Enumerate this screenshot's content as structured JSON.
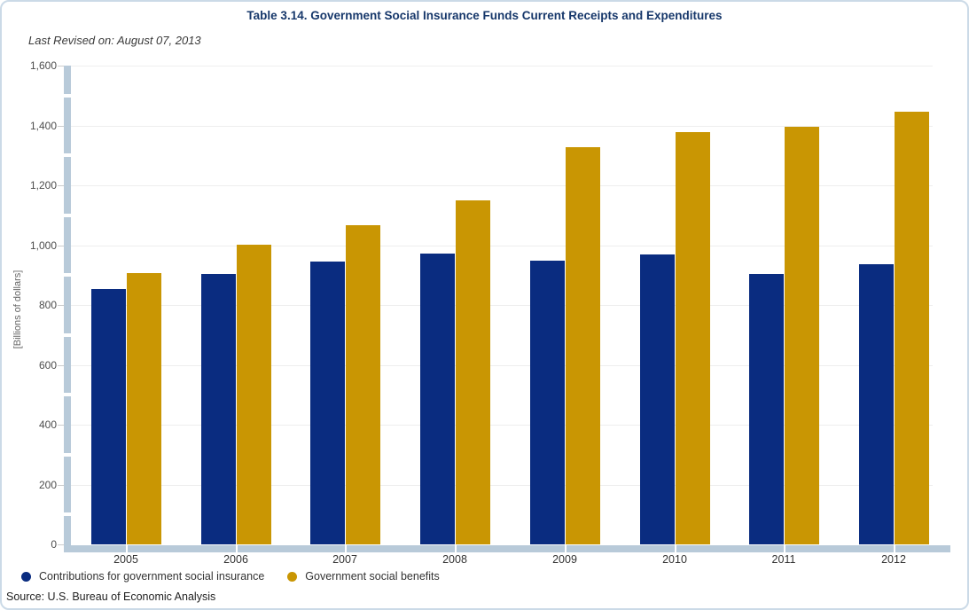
{
  "header": {
    "title": "Table 3.14. Government Social Insurance Funds Current Receipts and Expenditures",
    "last_revised": "Last Revised on: August 07, 2013"
  },
  "source_note": "Source: U.S. Bureau of Economic Analysis",
  "colors": {
    "contributions_blue": "#0a2c80",
    "benefits_gold": "#c99603",
    "axis_bar": "#b8cad9",
    "gridline": "#eeeeee",
    "title_text": "#17386b",
    "card_border": "#cbdae7"
  },
  "chart_data": {
    "type": "bar",
    "title": "Table 3.14. Government Social Insurance Funds Current Receipts and Expenditures",
    "subtitle": "Last Revised on: August 07, 2013",
    "categories": [
      "2005",
      "2006",
      "2007",
      "2008",
      "2009",
      "2010",
      "2011",
      "2012"
    ],
    "series": [
      {
        "name": "Contributions for government social insurance",
        "color": "#0a2c80",
        "values": [
          852,
          905,
          946,
          973,
          948,
          970,
          903,
          935
        ]
      },
      {
        "name": "Government social benefits",
        "color": "#c99603",
        "values": [
          906,
          1002,
          1068,
          1150,
          1327,
          1379,
          1397,
          1445
        ]
      }
    ],
    "xlabel": "",
    "ylabel": "[Billions of dollars]",
    "ylim": [
      0,
      1600
    ],
    "ytick_step": 200,
    "grid": true,
    "legend_position": "bottom-left"
  }
}
